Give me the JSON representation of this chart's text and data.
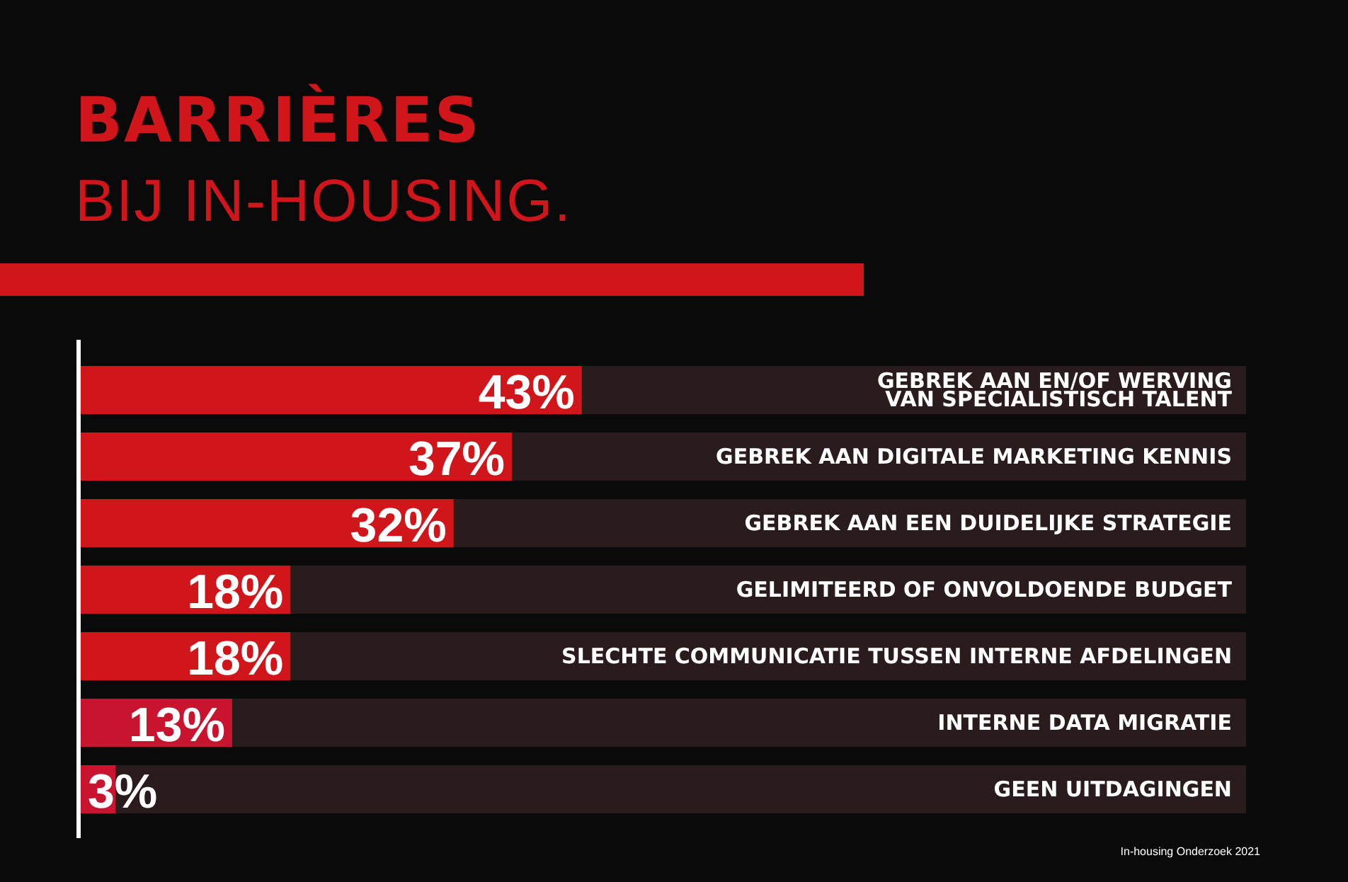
{
  "chart_data": {
    "type": "bar",
    "orientation": "horizontal",
    "title": "BARRIÈRES",
    "subtitle": "BIJ IN-HOUSING.",
    "categories": [
      "GEBREK AAN EN/OF WERVING\nVAN SPECIALISTISCH TALENT",
      "GEBREK AAN DIGITALE MARKETING KENNIS",
      "GEBREK AAN EEN DUIDELIJKE STRATEGIE",
      "GELIMITEERD OF ONVOLDOENDE BUDGET",
      "SLECHTE COMMUNICATIE TUSSEN INTERNE AFDELINGEN",
      "INTERNE DATA MIGRATIE",
      "GEEN UITDAGINGEN"
    ],
    "values": [
      43,
      37,
      32,
      18,
      18,
      13,
      3
    ],
    "colors": [
      "#d0161b",
      "#d0161b",
      "#d0161b",
      "#d0161b",
      "#d0161b",
      "#c8142f",
      "#c8142f"
    ],
    "value_labels": [
      "43%",
      "37%",
      "32%",
      "18%",
      "18%",
      "13%",
      "3%"
    ],
    "xlim": [
      0,
      100
    ],
    "tick_labels": "y",
    "grid": false,
    "annotations": [
      "In-housing Onderzoek 2021"
    ]
  }
}
